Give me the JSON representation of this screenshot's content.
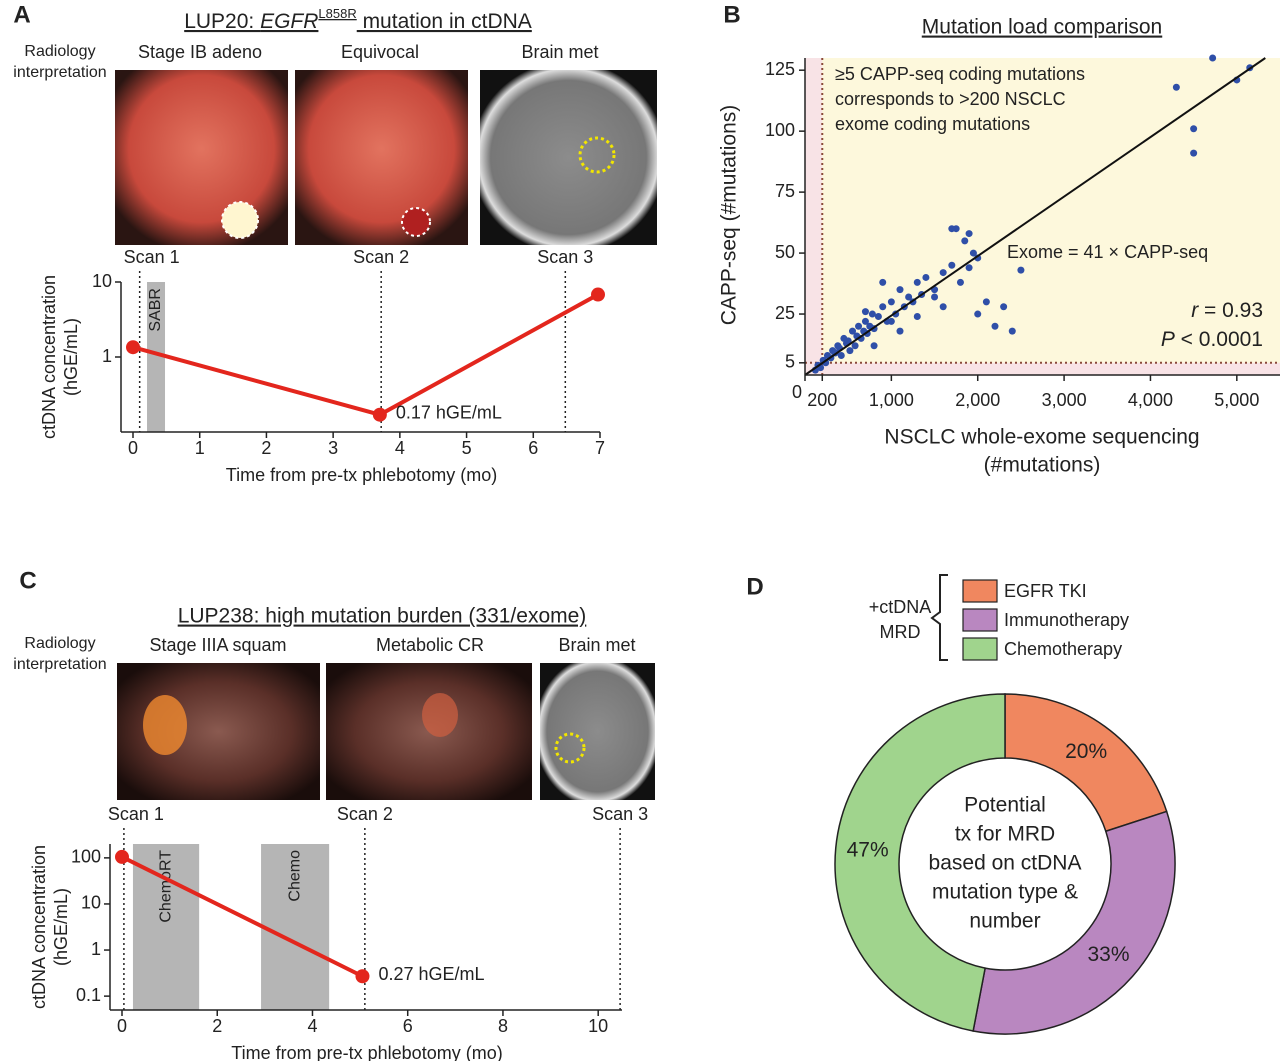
{
  "chart_data": [
    {
      "type": "line",
      "panel": "A",
      "title": {
        "prefix": "LUP20: ",
        "gene": "EGFR",
        "variant": "L858R",
        "suffix": " mutation in ctDNA"
      },
      "row_label": [
        "Radiology",
        "interpretation"
      ],
      "images": [
        "Stage IB adeno",
        "Equivocal",
        "Brain met"
      ],
      "scans": [
        {
          "label": "Scan 1",
          "x": 0.1
        },
        {
          "label": "Scan 2",
          "x": 3.72
        },
        {
          "label": "Scan 3",
          "x": 6.48
        }
      ],
      "bands": [
        {
          "label": "SABR",
          "start": 0.21,
          "end": 0.48
        }
      ],
      "x": [
        0,
        3.7,
        6.97
      ],
      "values": [
        1.35,
        0.17,
        6.8
      ],
      "value_labels": [
        null,
        "0.17 hGE/mL",
        null
      ],
      "color": "#e3261d",
      "log_y": true,
      "xlim": [
        0,
        7
      ],
      "xticks": [
        0,
        1,
        2,
        3,
        4,
        5,
        6,
        7
      ],
      "ylim": [
        0.1,
        10
      ],
      "yticks": [
        1,
        10
      ],
      "xlabel": "Time from pre-tx phlebotomy (mo)",
      "ylabel": [
        "ctDNA concentration",
        "(hGE/mL)"
      ]
    },
    {
      "type": "scatter",
      "panel": "B",
      "title": "Mutation load comparison",
      "x": [
        120,
        150,
        180,
        210,
        240,
        260,
        300,
        320,
        350,
        380,
        400,
        420,
        450,
        480,
        500,
        520,
        550,
        580,
        600,
        620,
        650,
        680,
        700,
        720,
        750,
        780,
        800,
        850,
        900,
        950,
        1000,
        1050,
        1100,
        1150,
        1200,
        1250,
        1300,
        1350,
        1400,
        1500,
        1600,
        1700,
        1750,
        1800,
        1850,
        1900,
        1950,
        2000,
        2100,
        2200,
        2300,
        2400,
        2500,
        2000,
        1500,
        900,
        700,
        4300,
        4500,
        4500,
        4720,
        5000,
        5150,
        1000,
        1100,
        1300,
        1600,
        1700,
        1900,
        800
      ],
      "values": [
        2,
        4,
        3,
        6,
        5,
        8,
        7,
        10,
        9,
        12,
        11,
        8,
        15,
        13,
        14,
        10,
        18,
        12,
        16,
        20,
        15,
        18,
        22,
        17,
        20,
        25,
        19,
        24,
        28,
        22,
        30,
        25,
        35,
        28,
        32,
        30,
        38,
        33,
        40,
        35,
        42,
        45,
        60,
        38,
        55,
        58,
        50,
        25,
        30,
        20,
        28,
        18,
        43,
        48,
        32,
        38,
        26,
        118,
        101,
        91,
        130,
        121,
        126,
        22,
        18,
        24,
        28,
        60,
        44,
        12
      ],
      "color": "#2f4fa8",
      "fit": {
        "label": "Exome = 41 × CAPP-seq",
        "slope": 41
      },
      "thresholds": {
        "x": 200,
        "y": 5
      },
      "annotation": [
        "≥5 CAPP-seq coding mutations",
        "corresponds to >200 NSCLC",
        "exome coding mutations"
      ],
      "stats": [
        {
          "symbol": "r",
          "text": " = 0.93"
        },
        {
          "symbol": "P",
          "text": " < 0.0001"
        }
      ],
      "xlim": [
        0,
        5500
      ],
      "xticks": [
        0,
        200,
        {
          "value": 1000,
          "label": "1,000"
        },
        {
          "value": 2000,
          "label": "2,000"
        },
        {
          "value": 3000,
          "label": "3,000"
        },
        {
          "value": 4000,
          "label": "4,000"
        },
        {
          "value": 5000,
          "label": "5,000"
        }
      ],
      "ylim": [
        0,
        130
      ],
      "yticks": [
        5,
        25,
        50,
        75,
        100,
        125
      ],
      "xlabel": [
        "NSCLC whole-exome sequencing",
        "(#mutations)"
      ],
      "ylabel": "CAPP-seq (#mutations)"
    },
    {
      "type": "line",
      "panel": "C",
      "title": "LUP238: high mutation burden (331/exome)",
      "row_label": [
        "Radiology",
        "interpretation"
      ],
      "images": [
        "Stage IIIA squam",
        "Metabolic CR",
        "Brain met"
      ],
      "scans": [
        {
          "label": "Scan 1",
          "x": 0.04
        },
        {
          "label": "Scan 2",
          "x": 5.1
        },
        {
          "label": "Scan 3",
          "x": 10.46
        }
      ],
      "bands": [
        {
          "label": "ChemoRT",
          "start": 0.23,
          "end": 1.62
        },
        {
          "label": "Chemo",
          "start": 2.92,
          "end": 4.35
        }
      ],
      "x": [
        0,
        5.05
      ],
      "values": [
        105,
        0.27
      ],
      "value_labels": [
        null,
        "0.27 hGE/mL"
      ],
      "color": "#e3261d",
      "log_y": true,
      "xlim": [
        0,
        10.5
      ],
      "xticks": [
        0,
        2,
        4,
        6,
        8,
        10
      ],
      "ylim": [
        0.05,
        200
      ],
      "yticks": [
        0.1,
        1,
        10,
        100
      ],
      "xlabel": "Time from pre-tx phlebotomy (mo)",
      "ylabel": [
        "ctDNA concentration",
        "(hGE/mL)"
      ]
    },
    {
      "type": "donut",
      "panel": "D",
      "categories": [
        "EGFR TKI",
        "Immunotherapy",
        "Chemotherapy"
      ],
      "values": [
        20,
        33,
        47
      ],
      "value_labels": [
        "20%",
        "33%",
        "47%"
      ],
      "colors": [
        "#f0875f",
        "#b987c0",
        "#a0d48d"
      ],
      "legend_title": [
        "+ctDNA",
        "MRD"
      ],
      "center_text": [
        "Potential",
        "tx for MRD",
        "based on ctDNA",
        "mutation type &",
        "number"
      ]
    }
  ]
}
